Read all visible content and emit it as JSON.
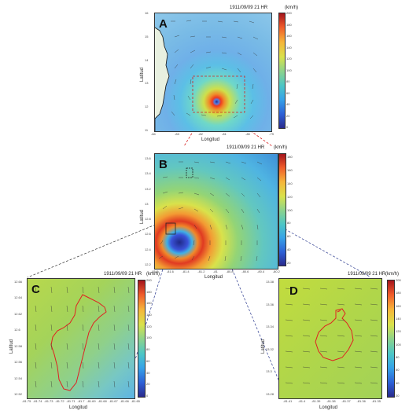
{
  "panels": {
    "a": {
      "letter": "A",
      "title": "1911/09/09 21 HR",
      "unit": "(km/h)",
      "xlabel": "Longitud",
      "ylabel": "Latitud",
      "cbar_ticks": [
        "200",
        "180",
        "160",
        "140",
        "120",
        "100",
        "80",
        "60",
        "40",
        "20",
        "0"
      ],
      "xticks": [
        "-84",
        "-83",
        "-82",
        "-81",
        "-80",
        "-79"
      ],
      "yticks": [
        "16",
        "15",
        "14",
        "13",
        "12",
        "11"
      ]
    },
    "b": {
      "letter": "B",
      "title": "1911/09/09 21 HR",
      "unit": "(km/h)",
      "xlabel": "Longitud",
      "ylabel": "Latitud",
      "cbar_ticks": [
        "180",
        "160",
        "140",
        "120",
        "100",
        "80",
        "60",
        "40",
        "20"
      ],
      "xticks": [
        "-81.8",
        "-81.6",
        "-81.4",
        "-81.2",
        "-81",
        "-80.8",
        "-80.6",
        "-80.4",
        "-80.2"
      ],
      "yticks": [
        "13.6",
        "13.4",
        "13.2",
        "13",
        "12.8",
        "12.6",
        "12.4",
        "12.2"
      ]
    },
    "c": {
      "letter": "C",
      "title": "1911/09/09 21 HR",
      "unit": "(km/h)",
      "xlabel": "Longitud",
      "ylabel": "Latitud",
      "cbar_ticks": [
        "200",
        "180",
        "160",
        "140",
        "120",
        "100",
        "80",
        "60",
        "40",
        "20",
        "0"
      ],
      "xticks": [
        "-81.75",
        "-81.74",
        "-81.73",
        "-81.72",
        "-81.71",
        "-81.7",
        "-81.69",
        "-81.68",
        "-81.67",
        "-81.66",
        "-81.65"
      ],
      "yticks": [
        "12.66",
        "12.64",
        "12.62",
        "12.6",
        "12.58",
        "12.56",
        "12.54",
        "12.52"
      ]
    },
    "d": {
      "letter": "D",
      "title": "1911/09/09 21 HR",
      "unit": "(km/h)",
      "xlabel": "Longitud",
      "ylabel": "Latitud",
      "cbar_ticks": [
        "200",
        "180",
        "160",
        "140",
        "120",
        "100",
        "80",
        "60",
        "40",
        "20"
      ],
      "xticks": [
        "-81.41",
        "-81.4",
        "-81.39",
        "-81.38",
        "-81.37",
        "-81.36",
        "-81.35"
      ],
      "yticks": [
        "13.38",
        "13.36",
        "13.34",
        "13.32",
        "13.3",
        "13.28"
      ]
    }
  },
  "colors": {
    "connector_red": "#d62020",
    "connector_blue": "#2b3a8f",
    "outline_red": "#e02020"
  }
}
